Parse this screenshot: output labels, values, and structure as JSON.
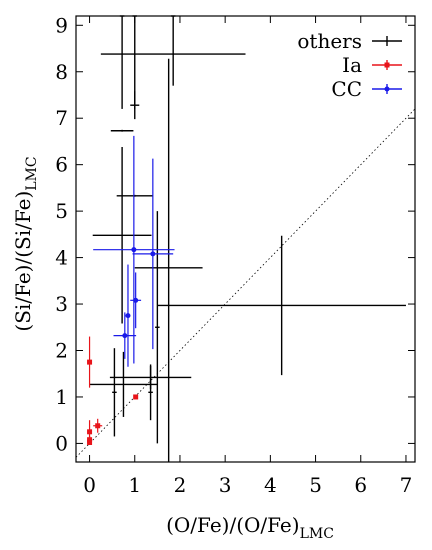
{
  "chart_data": {
    "type": "scatter",
    "title": "",
    "xlabel": "(O/Fe)/(O/Fe)",
    "xlabel_sub": "LMC",
    "ylabel": "(Si/Fe)/(Si/Fe)",
    "ylabel_sub": "LMC",
    "xlim": [
      -0.3,
      7.2
    ],
    "ylim": [
      -0.4,
      9.2
    ],
    "x_ticks": [
      0,
      1,
      2,
      3,
      4,
      5,
      6,
      7
    ],
    "y_ticks": [
      0,
      1,
      2,
      3,
      4,
      5,
      6,
      7,
      8,
      9
    ],
    "grid": false,
    "legend_position": "top-right",
    "reference_line": {
      "style": "dotted",
      "description": "y = x"
    },
    "series": [
      {
        "name": "others",
        "color": "#000000",
        "marker": "plus",
        "points": [
          {
            "x": 0.72,
            "xerr": 0.05,
            "y": 9.2,
            "yerr": 2.0
          },
          {
            "x": 1.0,
            "xerr": 0.05,
            "y": 9.2,
            "yerr": 2.0
          },
          {
            "x": 1.85,
            "xerr": 0.05,
            "y": 9.2,
            "yerr": 1.5
          },
          {
            "x": 1.85,
            "xerr": 1.6,
            "y": 8.38,
            "yerr": 0.02
          },
          {
            "x": 1.0,
            "xerr": 0.1,
            "y": 7.28,
            "yerr": 0.3
          },
          {
            "x": 0.72,
            "xerr": 0.25,
            "y": 6.73,
            "yerr": 0.02
          },
          {
            "x": 1.0,
            "xerr": 0.4,
            "y": 5.33,
            "yerr": 0.02
          },
          {
            "x": 0.72,
            "xerr": 0.65,
            "y": 4.48,
            "yerr": 1.9
          },
          {
            "x": 1.75,
            "xerr": 0.75,
            "y": 3.78,
            "yerr": 4.5
          },
          {
            "x": 4.25,
            "xerr": 2.75,
            "y": 2.97,
            "yerr": 1.5
          },
          {
            "x": 1.5,
            "xerr": 0.05,
            "y": 2.5,
            "yerr": 2.5
          },
          {
            "x": 1.35,
            "xerr": 0.9,
            "y": 1.42,
            "yerr": 0.25
          },
          {
            "x": 0.75,
            "xerr": 0.75,
            "y": 1.27,
            "yerr": 0.7
          },
          {
            "x": 0.55,
            "xerr": 0.05,
            "y": 1.1,
            "yerr": 0.95
          },
          {
            "x": 1.35,
            "xerr": 0.05,
            "y": 1.1,
            "yerr": 0.6
          }
        ]
      },
      {
        "name": "Ia",
        "color": "#e8141a",
        "marker": "square",
        "points": [
          {
            "x": 0.0,
            "xerr": 0.05,
            "y": 1.75,
            "yerr": 0.55
          },
          {
            "x": 0.0,
            "xerr": 0.05,
            "y": 0.25,
            "yerr": 0.25
          },
          {
            "x": 0.0,
            "xerr": 0.05,
            "y": 0.08,
            "yerr": 0.08
          },
          {
            "x": 0.0,
            "xerr": 0.05,
            "y": 0.02,
            "yerr": 0.05
          },
          {
            "x": 0.18,
            "xerr": 0.1,
            "y": 0.38,
            "yerr": 0.15
          },
          {
            "x": 1.02,
            "xerr": 0.03,
            "y": 1.0,
            "yerr": 0.03
          }
        ]
      },
      {
        "name": "CC",
        "color": "#1a1ae8",
        "marker": "circle",
        "points": [
          {
            "x": 0.98,
            "xerr": 0.9,
            "y": 4.17,
            "yerr": 2.45
          },
          {
            "x": 1.4,
            "xerr": 0.45,
            "y": 4.08,
            "yerr": 2.05
          },
          {
            "x": 1.02,
            "xerr": 0.12,
            "y": 3.08,
            "yerr": 0.6
          },
          {
            "x": 0.85,
            "xerr": 0.05,
            "y": 2.75,
            "yerr": 1.1
          },
          {
            "x": 0.78,
            "xerr": 0.25,
            "y": 2.32,
            "yerr": 0.5
          }
        ]
      }
    ]
  }
}
